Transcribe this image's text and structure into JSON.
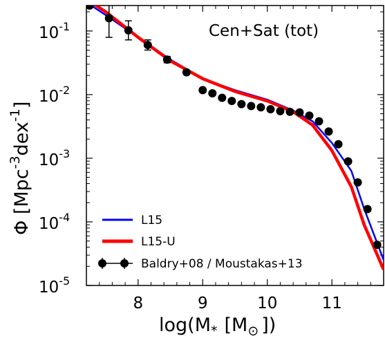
{
  "chart_data": {
    "type": "line",
    "title": "",
    "annotation": "Cen+Sat (tot)",
    "xlabel": "log(M",
    "xlabel_sub": "*",
    "xlabel_unit": "[M",
    "xlabel_unit_sub": "⊙",
    "xlabel_close": "])",
    "ylabel": "Φ [Mpc",
    "ylabel_exp1": "-3",
    "ylabel_mid": "dex",
    "ylabel_exp2": "-1",
    "ylabel_close": "]",
    "xlim": [
      7.2,
      11.8
    ],
    "ylim_log10": [
      -5,
      -0.6
    ],
    "yscale": "log",
    "x_ticks": [
      {
        "value": 8,
        "label": "8"
      },
      {
        "value": 9,
        "label": "9"
      },
      {
        "value": 10,
        "label": "10"
      },
      {
        "value": 11,
        "label": "11"
      }
    ],
    "y_ticks": [
      {
        "exp": -1,
        "base": "10",
        "sup": "-1"
      },
      {
        "exp": -2,
        "base": "10",
        "sup": "-2"
      },
      {
        "exp": -3,
        "base": "10",
        "sup": "-3"
      },
      {
        "exp": -4,
        "base": "10",
        "sup": "-4"
      },
      {
        "exp": -5,
        "base": "10",
        "sup": "-5"
      }
    ],
    "legend_position": "lower-left",
    "series": [
      {
        "name": "L15",
        "kind": "line",
        "color": "#0000ff",
        "x": [
          7.2,
          7.5,
          8.0,
          8.5,
          9.0,
          9.5,
          10.0,
          10.4,
          10.7,
          11.0,
          11.3,
          11.5,
          11.8
        ],
        "log10_y": [
          -0.55,
          -0.75,
          -1.1,
          -1.45,
          -1.75,
          -1.93,
          -2.08,
          -2.25,
          -2.42,
          -2.76,
          -3.2,
          -3.8,
          -4.6
        ]
      },
      {
        "name": "L15-U",
        "kind": "line",
        "color": "#ff0000",
        "x": [
          7.2,
          7.5,
          8.0,
          8.5,
          9.0,
          9.5,
          10.0,
          10.4,
          10.7,
          11.0,
          11.3,
          11.5,
          11.8
        ],
        "log10_y": [
          -0.5,
          -0.7,
          -1.1,
          -1.47,
          -1.75,
          -1.95,
          -2.1,
          -2.27,
          -2.48,
          -2.88,
          -3.45,
          -4.05,
          -4.75
        ]
      },
      {
        "name": "Baldry+08 / Moustakas+13",
        "kind": "points",
        "color": "#000000",
        "x": [
          7.25,
          7.55,
          7.85,
          8.15,
          8.45,
          8.75,
          9.0,
          9.15,
          9.3,
          9.45,
          9.6,
          9.75,
          9.9,
          10.05,
          10.2,
          10.35,
          10.5,
          10.65,
          10.8,
          10.95,
          11.1,
          11.25,
          11.4,
          11.55,
          11.7
        ],
        "log10_y": [
          -0.6,
          -0.8,
          -0.99,
          -1.22,
          -1.45,
          -1.65,
          -1.93,
          -1.98,
          -2.05,
          -2.1,
          -2.15,
          -2.18,
          -2.2,
          -2.23,
          -2.26,
          -2.27,
          -2.28,
          -2.33,
          -2.42,
          -2.58,
          -2.78,
          -3.05,
          -3.38,
          -3.8,
          -4.36
        ],
        "err_log10": [
          0.0,
          0.3,
          0.15,
          0.08,
          0.05,
          0.03,
          0.02,
          0.02,
          0.02,
          0.02,
          0.02,
          0.02,
          0.02,
          0.02,
          0.02,
          0.02,
          0.02,
          0.02,
          0.02,
          0.02,
          0.02,
          0.02,
          0.02,
          0.02,
          0.03
        ]
      }
    ]
  }
}
